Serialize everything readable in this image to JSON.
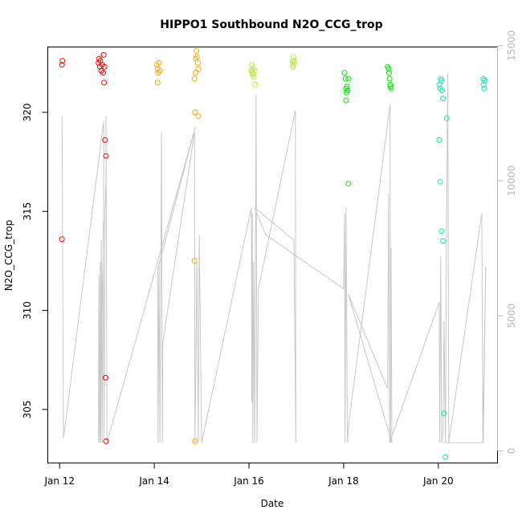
{
  "chart_data": {
    "type": "scatter",
    "title": "HIPPO1 Southbound N2O_CCG_trop",
    "xlabel": "Date",
    "ylabel": "N2O_CCG_trop",
    "x_axis": {
      "type": "date",
      "ticks": [
        "Jan 12",
        "Jan 14",
        "Jan 16",
        "Jan 18",
        "Jan 20"
      ],
      "tick_days": [
        12,
        14,
        16,
        18,
        20
      ],
      "range_days": [
        11.75,
        21.25
      ]
    },
    "y_left": {
      "ticks": [
        305,
        310,
        315,
        320
      ],
      "ylim": [
        302.3,
        323.3
      ]
    },
    "y_right": {
      "ticks": [
        0,
        5000,
        10000,
        15000
      ],
      "ylim": [
        -450,
        14950
      ],
      "color": "#b8b8b8"
    },
    "grid": false,
    "legend": "none",
    "series": [
      {
        "color": "#ff0000",
        "points": [
          [
            12.05,
            322.4
          ],
          [
            12.06,
            322.6
          ],
          [
            12.82,
            322.5
          ],
          [
            12.83,
            322.7
          ],
          [
            12.85,
            322.3
          ],
          [
            12.86,
            322.6
          ],
          [
            12.88,
            322.1
          ],
          [
            12.9,
            322.4
          ],
          [
            12.92,
            322.0
          ],
          [
            12.93,
            322.9
          ],
          [
            12.94,
            321.5
          ],
          [
            12.95,
            322.3
          ],
          [
            12.96,
            318.6
          ],
          [
            12.98,
            317.8
          ],
          [
            12.05,
            313.6
          ],
          [
            12.97,
            306.6
          ],
          [
            12.98,
            303.4
          ]
        ]
      },
      {
        "color": "#ffa500",
        "points": [
          [
            14.05,
            322.4
          ],
          [
            14.07,
            322.2
          ],
          [
            14.08,
            322.0
          ],
          [
            14.1,
            322.5
          ],
          [
            14.12,
            322.1
          ],
          [
            14.07,
            321.5
          ],
          [
            14.85,
            321.7
          ],
          [
            14.87,
            322.0
          ],
          [
            14.88,
            322.7
          ],
          [
            14.89,
            323.1
          ],
          [
            14.9,
            322.8
          ],
          [
            14.92,
            322.5
          ],
          [
            14.93,
            322.2
          ],
          [
            14.86,
            320.0
          ],
          [
            14.93,
            319.8
          ],
          [
            14.85,
            312.5
          ],
          [
            14.86,
            303.4
          ]
        ]
      },
      {
        "color": "#b3ee3a",
        "points": [
          [
            16.05,
            322.1
          ],
          [
            16.07,
            322.0
          ],
          [
            16.08,
            322.2
          ],
          [
            16.1,
            321.8
          ],
          [
            16.12,
            322.1
          ],
          [
            16.13,
            321.4
          ],
          [
            16.06,
            322.4
          ],
          [
            16.08,
            321.9
          ],
          [
            16.92,
            322.6
          ],
          [
            16.93,
            322.4
          ],
          [
            16.94,
            322.8
          ],
          [
            16.95,
            322.6
          ],
          [
            16.96,
            322.5
          ],
          [
            16.93,
            322.3
          ]
        ]
      },
      {
        "color": "#00ee00",
        "points": [
          [
            18.02,
            322.0
          ],
          [
            18.04,
            321.7
          ],
          [
            18.05,
            321.2
          ],
          [
            18.06,
            321.0
          ],
          [
            18.07,
            321.3
          ],
          [
            18.08,
            321.1
          ],
          [
            18.1,
            321.7
          ],
          [
            18.05,
            320.6
          ],
          [
            18.1,
            316.4
          ],
          [
            18.93,
            322.3
          ],
          [
            18.95,
            322.2
          ],
          [
            18.96,
            322.0
          ],
          [
            18.97,
            321.7
          ],
          [
            18.98,
            321.4
          ],
          [
            18.99,
            321.3
          ],
          [
            19.0,
            321.2
          ]
        ]
      },
      {
        "color": "#00eeaa",
        "points": [
          [
            20.02,
            321.4
          ],
          [
            20.04,
            321.2
          ],
          [
            20.05,
            321.7
          ],
          [
            20.07,
            321.6
          ],
          [
            20.08,
            321.1
          ],
          [
            20.1,
            320.7
          ],
          [
            20.02,
            318.6
          ],
          [
            20.04,
            316.5
          ],
          [
            20.07,
            314.0
          ],
          [
            20.1,
            313.5
          ],
          [
            20.18,
            319.7
          ],
          [
            20.12,
            304.8
          ],
          [
            20.15,
            302.6
          ],
          [
            20.95,
            321.7
          ],
          [
            20.96,
            321.4
          ],
          [
            20.97,
            321.2
          ],
          [
            20.98,
            321.6
          ]
        ]
      }
    ],
    "altitude_trace": {
      "color": "#c8c8c8",
      "points": [
        [
          12.05,
          12400
        ],
        [
          12.08,
          450
        ],
        [
          12.93,
          12200
        ],
        [
          12.93,
          8000
        ],
        [
          12.82,
          300
        ],
        [
          12.83,
          6500
        ],
        [
          12.85,
          300
        ],
        [
          12.86,
          7000
        ],
        [
          12.87,
          300
        ],
        [
          12.88,
          7800
        ],
        [
          12.9,
          300
        ],
        [
          12.92,
          8500
        ],
        [
          12.94,
          500
        ],
        [
          12.96,
          8800
        ],
        [
          12.98,
          10000
        ],
        [
          12.98,
          12400
        ],
        [
          13.0,
          300
        ],
        [
          14.87,
          12000
        ],
        [
          14.07,
          6700
        ],
        [
          14.08,
          300
        ],
        [
          14.1,
          7000
        ],
        [
          14.12,
          300
        ],
        [
          14.15,
          11800
        ],
        [
          14.17,
          300
        ],
        [
          14.18,
          4000
        ],
        [
          14.85,
          11800
        ],
        [
          14.86,
          300
        ],
        [
          14.9,
          7000
        ],
        [
          14.93,
          300
        ],
        [
          14.95,
          8000
        ],
        [
          15.0,
          300
        ],
        [
          16.05,
          9000
        ],
        [
          16.06,
          1800
        ],
        [
          16.07,
          8800
        ],
        [
          16.08,
          300
        ],
        [
          16.1,
          7000
        ],
        [
          16.12,
          300
        ],
        [
          16.15,
          13200
        ],
        [
          16.17,
          300
        ],
        [
          16.2,
          6000
        ],
        [
          16.98,
          12600
        ],
        [
          16.99,
          300
        ],
        [
          16.95,
          7800
        ],
        [
          16.12,
          9000
        ],
        [
          16.35,
          8000
        ],
        [
          18.0,
          6000
        ],
        [
          18.02,
          8800
        ],
        [
          18.03,
          300
        ],
        [
          18.05,
          9000
        ],
        [
          18.08,
          300
        ],
        [
          18.12,
          1200
        ],
        [
          18.98,
          12800
        ],
        [
          18.99,
          300
        ],
        [
          19.0,
          7500
        ],
        [
          19.02,
          300
        ],
        [
          18.1,
          5800
        ],
        [
          18.93,
          2300
        ],
        [
          18.95,
          9500
        ],
        [
          18.97,
          300
        ],
        [
          20.02,
          5500
        ],
        [
          20.03,
          300
        ],
        [
          20.05,
          7200
        ],
        [
          20.07,
          300
        ],
        [
          20.1,
          700
        ],
        [
          20.12,
          4800
        ],
        [
          20.15,
          300
        ],
        [
          20.17,
          7500
        ],
        [
          20.2,
          14000
        ],
        [
          20.22,
          300
        ],
        [
          20.92,
          8800
        ],
        [
          20.94,
          300
        ],
        [
          21.0,
          6800
        ],
        [
          20.95,
          300
        ],
        [
          20.1,
          300
        ]
      ]
    }
  }
}
